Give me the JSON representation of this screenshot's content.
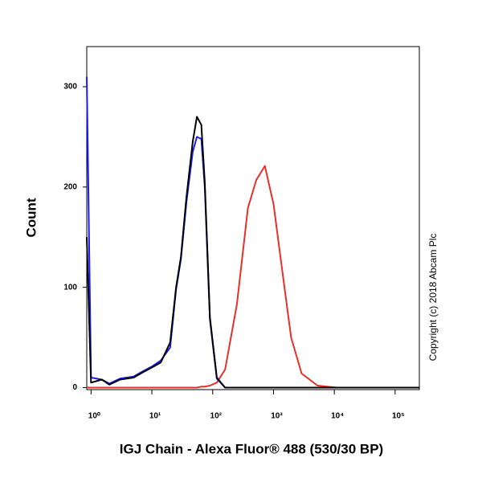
{
  "chart_data": {
    "type": "line",
    "x_label": "IGJ Chain - Alexa Fluor® 488 (530/30 BP)",
    "y_label": "Count",
    "annotation": "Copyright (c) 2018 Abcam Plc",
    "x_log": true,
    "xlim": [
      0.85,
      250000
    ],
    "xticks": [
      {
        "value": 1,
        "label": "10⁰"
      },
      {
        "value": 10,
        "label": "10¹"
      },
      {
        "value": 100,
        "label": "10²"
      },
      {
        "value": 1000,
        "label": "10³"
      },
      {
        "value": 10000,
        "label": "10⁴"
      },
      {
        "value": 100000,
        "label": "10⁵"
      }
    ],
    "ylim": [
      -2,
      340
    ],
    "yticks": [
      0,
      100,
      200,
      300
    ],
    "x": [
      0.85,
      1,
      1.5,
      2,
      3,
      5,
      7,
      10,
      14,
      20,
      25,
      30,
      37,
      47,
      55,
      65,
      74,
      90,
      117,
      160,
      250,
      380,
      520,
      720,
      1000,
      1350,
      1950,
      2900,
      5300,
      11000,
      30000,
      100000,
      250000
    ],
    "series": [
      {
        "name": "Red",
        "color": "#e8302a",
        "values": [
          0,
          0,
          0,
          0,
          0,
          0,
          0,
          0,
          0,
          0,
          0,
          0,
          0,
          0,
          0,
          1,
          1,
          2,
          5,
          18,
          83,
          179,
          207,
          221,
          183,
          123,
          50,
          14,
          2,
          0,
          0,
          0,
          0
        ]
      },
      {
        "name": "Blue",
        "color": "#1a1aff",
        "values": [
          310,
          10,
          8,
          4,
          9,
          11,
          16,
          21,
          27,
          40,
          98,
          128,
          185,
          235,
          250,
          248,
          200,
          68,
          9,
          0,
          0,
          0,
          0,
          0,
          0,
          0,
          0,
          0,
          0,
          0,
          0,
          0,
          0
        ]
      },
      {
        "name": "Black",
        "color": "#000000",
        "values": [
          150,
          5,
          8,
          3,
          8,
          10,
          15,
          20,
          25,
          45,
          100,
          130,
          190,
          245,
          270,
          262,
          205,
          70,
          10,
          0,
          0,
          0,
          0,
          0,
          0,
          0,
          0,
          0,
          0,
          0,
          0,
          0,
          0
        ]
      }
    ]
  }
}
